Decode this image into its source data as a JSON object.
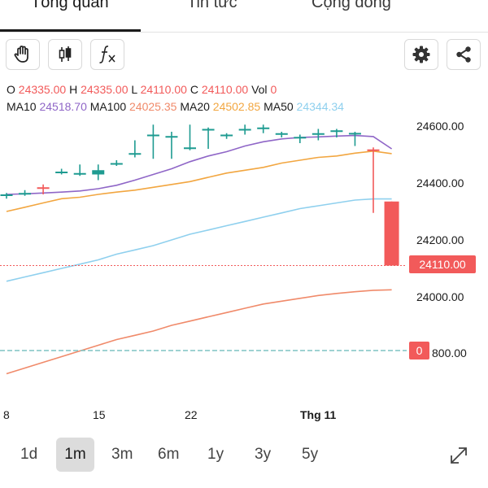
{
  "tabs": [
    {
      "label": "Tổng quan",
      "active": true
    },
    {
      "label": "Tin tức",
      "active": false
    },
    {
      "label": "Cộng đồng",
      "active": false
    }
  ],
  "toolbar": {
    "left_icons": [
      "hand-icon",
      "candlestick-icon",
      "function-icon"
    ],
    "right_icons": [
      "gear-icon",
      "share-icon"
    ]
  },
  "ohlc": {
    "o_label": "O",
    "o_value": "24335.00",
    "h_label": "H",
    "h_value": "24335.00",
    "l_label": "L",
    "l_value": "24110.00",
    "c_label": "C",
    "c_value": "24110.00",
    "vol_label": "Vol",
    "vol_value": "0"
  },
  "ma": [
    {
      "label": "MA10",
      "value": "24518.70",
      "color": "#8f66c7"
    },
    {
      "label": "MA100",
      "value": "24025.35",
      "color": "#f08a6a"
    },
    {
      "label": "MA20",
      "value": "24502.85",
      "color": "#f2a640"
    },
    {
      "label": "MA50",
      "value": "24344.34",
      "color": "#8fd0ee"
    }
  ],
  "chart_data": {
    "type": "line",
    "y_axis_labels": [
      "24600.00",
      "24400.00",
      "24200.00",
      "24000.00"
    ],
    "ylim": [
      23730,
      24720
    ],
    "price_tag": "24110.00",
    "price_tag_value": 24110,
    "volume_tag": "0",
    "volume_axis_label": "800.00",
    "x_tick_labels": [
      "8",
      "15",
      "22",
      "Thg 11"
    ],
    "up_color": "#1e9b91",
    "down_color": "#f25a5a",
    "candles": [
      {
        "o": 24355,
        "h": 24365,
        "l": 24345,
        "c": 24360
      },
      {
        "o": 24365,
        "h": 24375,
        "l": 24355,
        "c": 24365
      },
      {
        "o": 24385,
        "h": 24395,
        "l": 24360,
        "c": 24380
      },
      {
        "o": 24440,
        "h": 24450,
        "l": 24430,
        "c": 24440
      },
      {
        "o": 24430,
        "h": 24465,
        "l": 24425,
        "c": 24435
      },
      {
        "o": 24430,
        "h": 24465,
        "l": 24410,
        "c": 24445
      },
      {
        "o": 24470,
        "h": 24480,
        "l": 24460,
        "c": 24470
      },
      {
        "o": 24500,
        "h": 24550,
        "l": 24490,
        "c": 24505
      },
      {
        "o": 24565,
        "h": 24605,
        "l": 24485,
        "c": 24570
      },
      {
        "o": 24560,
        "h": 24580,
        "l": 24485,
        "c": 24565
      },
      {
        "o": 24525,
        "h": 24605,
        "l": 24515,
        "c": 24525
      },
      {
        "o": 24585,
        "h": 24595,
        "l": 24520,
        "c": 24590
      },
      {
        "o": 24565,
        "h": 24575,
        "l": 24555,
        "c": 24570
      },
      {
        "o": 24585,
        "h": 24605,
        "l": 24570,
        "c": 24590
      },
      {
        "o": 24590,
        "h": 24605,
        "l": 24575,
        "c": 24595
      },
      {
        "o": 24570,
        "h": 24580,
        "l": 24560,
        "c": 24575
      },
      {
        "o": 24560,
        "h": 24570,
        "l": 24540,
        "c": 24562
      },
      {
        "o": 24570,
        "h": 24590,
        "l": 24550,
        "c": 24575
      },
      {
        "o": 24580,
        "h": 24590,
        "l": 24560,
        "c": 24585
      },
      {
        "o": 24575,
        "h": 24580,
        "l": 24530,
        "c": 24576
      },
      {
        "o": 24518,
        "h": 24525,
        "l": 24295,
        "c": 24515
      },
      {
        "o": 24335,
        "h": 24335,
        "l": 24110,
        "c": 24110
      }
    ],
    "series": [
      {
        "name": "MA10",
        "values": [
          24360,
          24362,
          24365,
          24368,
          24372,
          24380,
          24392,
          24410,
          24430,
          24450,
          24475,
          24495,
          24510,
          24530,
          24545,
          24555,
          24560,
          24562,
          24565,
          24567,
          24563,
          24520
        ]
      },
      {
        "name": "MA20",
        "values": [
          24300,
          24315,
          24330,
          24345,
          24350,
          24360,
          24368,
          24375,
          24385,
          24395,
          24405,
          24420,
          24435,
          24445,
          24455,
          24470,
          24480,
          24490,
          24495,
          24505,
          24512,
          24503
        ]
      },
      {
        "name": "MA50",
        "values": [
          24055,
          24070,
          24085,
          24100,
          24115,
          24130,
          24150,
          24165,
          24180,
          24200,
          24220,
          24235,
          24250,
          24265,
          24280,
          24295,
          24310,
          24320,
          24330,
          24340,
          24344,
          24344
        ]
      },
      {
        "name": "MA100",
        "values": [
          23730,
          23750,
          23770,
          23790,
          23810,
          23830,
          23850,
          23865,
          23880,
          23900,
          23915,
          23930,
          23945,
          23960,
          23975,
          23985,
          23995,
          24005,
          24012,
          24018,
          24023,
          24025
        ]
      }
    ]
  },
  "ranges": [
    {
      "label": "1d",
      "active": false
    },
    {
      "label": "1m",
      "active": true
    },
    {
      "label": "3m",
      "active": false
    },
    {
      "label": "6m",
      "active": false
    },
    {
      "label": "1y",
      "active": false
    },
    {
      "label": "3y",
      "active": false
    },
    {
      "label": "5y",
      "active": false
    }
  ]
}
